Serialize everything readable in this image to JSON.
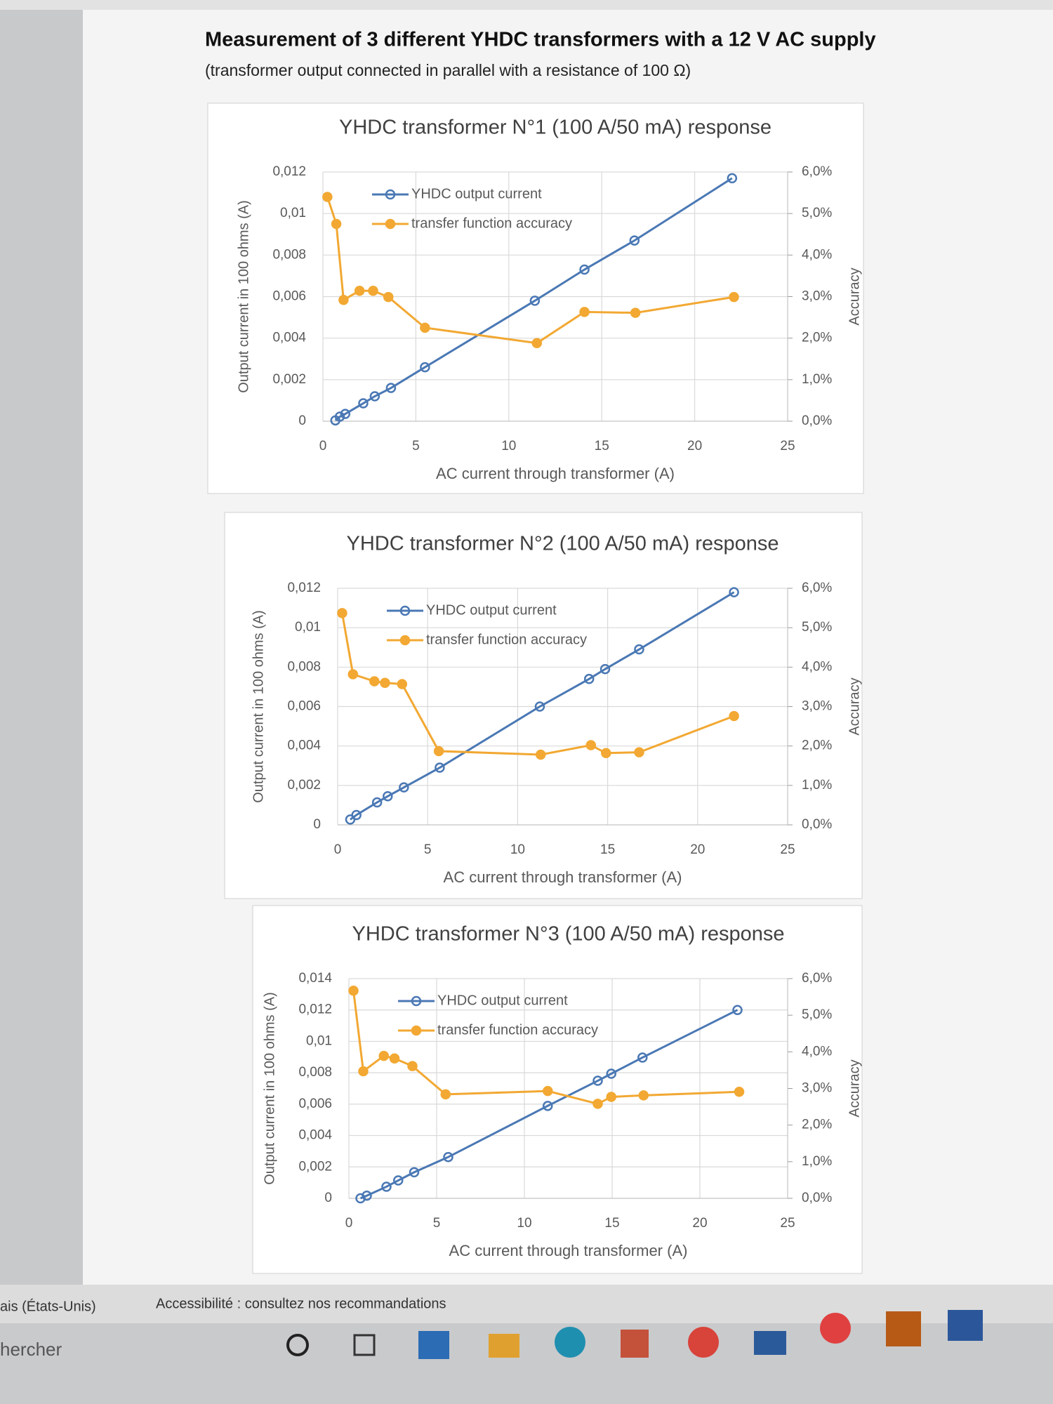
{
  "document": {
    "title": "Measurement of 3 different YHDC transformers with a 12 V AC supply",
    "subtitle": "(transformer output connected in parallel with a resistance of 100 Ω)"
  },
  "status_bar": {
    "language": "ais (États-Unis)",
    "accessibility": "Accessibilité : consultez nos recommandations"
  },
  "taskbar": {
    "search": "hercher"
  },
  "chart_data": [
    {
      "type": "line",
      "title": "YHDC transformer  N°1 (100 A/50 mA) response",
      "xlabel": "AC current through transformer (A)",
      "ylabel": "Output current in 100 ohms (A)",
      "y2label": "Accuracy",
      "xlim": [
        0,
        25
      ],
      "xticks": [
        0,
        5,
        10,
        15,
        20,
        25
      ],
      "ylim": [
        0,
        0.012
      ],
      "yticks": [
        0,
        {
          "value": 0.002,
          "label": "0,002"
        },
        {
          "value": 0.004,
          "label": "0,004"
        },
        {
          "value": 0.006,
          "label": "0,006"
        },
        {
          "value": 0.008,
          "label": "0,008"
        },
        {
          "value": 0.01,
          "label": "0,01"
        },
        {
          "value": 0.012,
          "label": "0,012"
        }
      ],
      "y2lim": [
        0,
        6
      ],
      "y2ticks": [
        {
          "value": 0,
          "label": "0,0%"
        },
        {
          "value": 1,
          "label": "1,0%"
        },
        {
          "value": 2,
          "label": "2,0%"
        },
        {
          "value": 3,
          "label": "3,0%"
        },
        {
          "value": 4,
          "label": "4,0%"
        },
        {
          "value": 5,
          "label": "5,0%"
        },
        {
          "value": 6,
          "label": "6,0%"
        }
      ],
      "grid": true,
      "legend": "upper left",
      "series": [
        {
          "name": "YHDC output current",
          "color": "#4a78b4",
          "marker": "hollow",
          "x": [
            0.67,
            0.91,
            1.2,
            2.17,
            2.79,
            3.66,
            5.49,
            11.4,
            14.07,
            16.76,
            22.01
          ],
          "values": [
            4e-05,
            0.00022,
            0.00035,
            0.00086,
            0.0012,
            0.0016,
            0.0026,
            0.0058,
            0.0073,
            0.0087,
            0.0117
          ]
        },
        {
          "name": "transfer function accuracy",
          "color": "#f2a832",
          "marker": "filled",
          "axis": "y2",
          "x": [
            0.24,
            0.72,
            1.11,
            1.97,
            2.7,
            3.52,
            5.49,
            11.51,
            14.07,
            16.81,
            22.11
          ],
          "values": [
            5.4,
            4.75,
            2.92,
            3.14,
            3.14,
            2.99,
            2.25,
            1.88,
            2.63,
            2.61,
            2.99
          ]
        }
      ]
    },
    {
      "type": "line",
      "title": "YHDC transformer  N°2 (100 A/50 mA) response",
      "xlabel": "AC current through transformer (A)",
      "ylabel": "Output current in 100 ohms (A)",
      "y2label": "Accuracy",
      "xlim": [
        0,
        25
      ],
      "xticks": [
        0,
        5,
        10,
        15,
        20,
        25
      ],
      "ylim": [
        0,
        0.012
      ],
      "yticks": [
        0,
        {
          "value": 0.002,
          "label": "0,002"
        },
        {
          "value": 0.004,
          "label": "0,004"
        },
        {
          "value": 0.006,
          "label": "0,006"
        },
        {
          "value": 0.008,
          "label": "0,008"
        },
        {
          "value": 0.01,
          "label": "0,01"
        },
        {
          "value": 0.012,
          "label": "0,012"
        }
      ],
      "y2lim": [
        0,
        6
      ],
      "y2ticks": [
        {
          "value": 0,
          "label": "0,0%"
        },
        {
          "value": 1,
          "label": "1,0%"
        },
        {
          "value": 2,
          "label": "2,0%"
        },
        {
          "value": 3,
          "label": "3,0%"
        },
        {
          "value": 4,
          "label": "4,0%"
        },
        {
          "value": 5,
          "label": "5,0%"
        },
        {
          "value": 6,
          "label": "6,0%"
        }
      ],
      "grid": true,
      "legend": "upper left",
      "series": [
        {
          "name": "YHDC output current",
          "color": "#4a78b4",
          "marker": "hollow",
          "x": [
            0.7,
            1.04,
            2.19,
            2.78,
            3.68,
            5.67,
            11.23,
            13.97,
            14.86,
            16.75,
            22.02
          ],
          "values": [
            0.00027,
            0.0005,
            0.00114,
            0.00145,
            0.0019,
            0.0029,
            0.006,
            0.0074,
            0.0079,
            0.0089,
            0.0118
          ]
        },
        {
          "name": "transfer function accuracy",
          "color": "#f2a832",
          "marker": "filled",
          "axis": "y2",
          "x": [
            0.25,
            0.85,
            2.04,
            2.63,
            3.58,
            5.62,
            11.28,
            14.07,
            14.91,
            16.75,
            22.02
          ],
          "values": [
            5.37,
            3.82,
            3.64,
            3.6,
            3.57,
            1.87,
            1.78,
            2.02,
            1.82,
            1.84,
            2.76
          ]
        }
      ]
    },
    {
      "type": "line",
      "title": "YHDC transformer  N°3 (100 A/50 mA) response",
      "xlabel": "AC current through transformer (A)",
      "ylabel": "Output current in 100 ohms (A)",
      "y2label": "Accuracy",
      "xlim": [
        0,
        25
      ],
      "xticks": [
        0,
        5,
        10,
        15,
        20,
        25
      ],
      "ylim": [
        0,
        0.014
      ],
      "yticks": [
        0,
        {
          "value": 0.002,
          "label": "0,002"
        },
        {
          "value": 0.004,
          "label": "0,004"
        },
        {
          "value": 0.006,
          "label": "0,006"
        },
        {
          "value": 0.008,
          "label": "0,008"
        },
        {
          "value": 0.01,
          "label": "0,01"
        },
        {
          "value": 0.012,
          "label": "0,012"
        },
        {
          "value": 0.014,
          "label": "0,014"
        }
      ],
      "y2lim": [
        0,
        6
      ],
      "y2ticks": [
        {
          "value": 0,
          "label": "0,0%"
        },
        {
          "value": 1,
          "label": "1,0%"
        },
        {
          "value": 2,
          "label": "2,0%"
        },
        {
          "value": 3,
          "label": "3,0%"
        },
        {
          "value": 4,
          "label": "4,0%"
        },
        {
          "value": 5,
          "label": "5,0%"
        },
        {
          "value": 6,
          "label": "6,0%"
        }
      ],
      "grid": true,
      "legend": "upper left",
      "series": [
        {
          "name": "YHDC output current",
          "color": "#4a78b4",
          "marker": "hollow",
          "x": [
            0.66,
            1.02,
            2.14,
            2.81,
            3.72,
            5.66,
            11.33,
            14.18,
            14.95,
            16.73,
            22.14
          ],
          "values": [
            0,
            0.00017,
            0.00074,
            0.00114,
            0.00166,
            0.00263,
            0.00589,
            0.00749,
            0.00794,
            0.00897,
            0.012
          ]
        },
        {
          "name": "transfer function accuracy",
          "color": "#f2a832",
          "marker": "filled",
          "axis": "y2",
          "x": [
            0.26,
            0.82,
            1.99,
            2.6,
            3.62,
            5.51,
            11.33,
            14.18,
            14.95,
            16.79,
            22.24
          ],
          "values": [
            5.67,
            3.47,
            3.89,
            3.82,
            3.61,
            2.84,
            2.93,
            2.58,
            2.77,
            2.81,
            2.91
          ]
        }
      ]
    }
  ]
}
